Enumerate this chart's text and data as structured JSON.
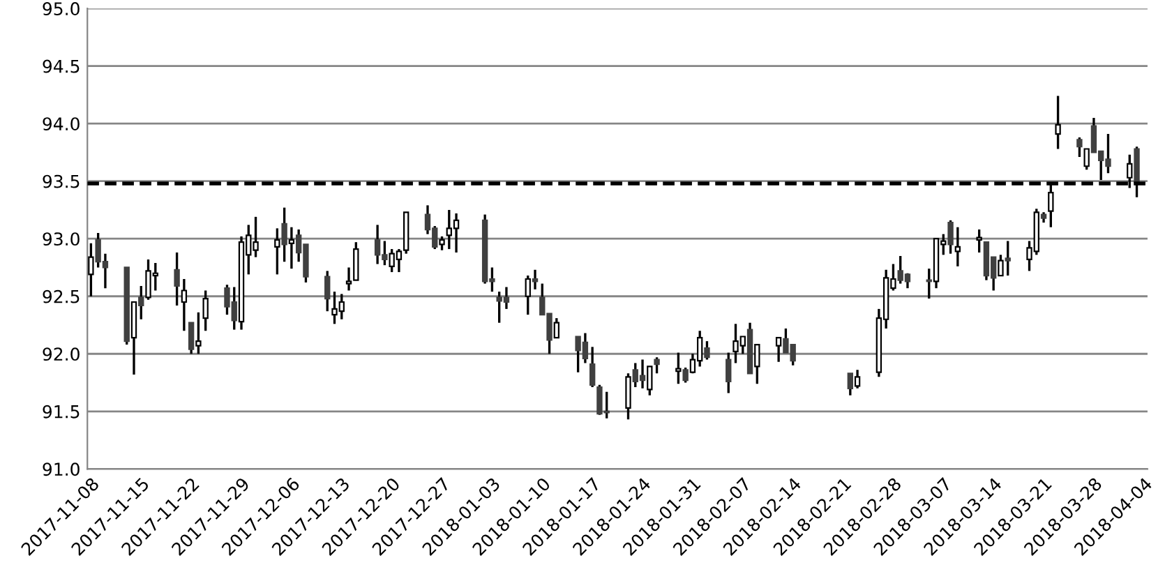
{
  "chart_data": {
    "type": "candlestick",
    "colors": [
      "#ffffff",
      "#404040",
      "#404040",
      "#404040",
      "#ffffff",
      "#404040",
      "#ffffff",
      "#ffffff",
      "#404040",
      "#ffffff",
      "#404040",
      "#ffffff",
      "#ffffff",
      "#404040",
      "#404040",
      "#ffffff",
      "#ffffff",
      "#ffffff",
      "#ffffff",
      "#404040",
      "#ffffff",
      "#404040",
      "#404040",
      "#404040",
      "#ffffff",
      "#ffffff",
      "#ffffff",
      "#ffffff",
      "#404040",
      "#404040",
      "#ffffff",
      "#ffffff",
      "#ffffff",
      "#404040",
      "#404040",
      "#ffffff",
      "#ffffff",
      "#ffffff",
      "#404040",
      "#404040",
      "#404040",
      "#404040",
      "#ffffff",
      "#404040",
      "#404040",
      "#404040",
      "#ffffff",
      "#404040",
      "#404040",
      "#404040",
      "#404040",
      "#404040",
      "#ffffff",
      "#404040",
      "#404040",
      "#ffffff",
      "#404040",
      "#ffffff",
      "#404040",
      "#ffffff",
      "#ffffff",
      "#404040",
      "#404040",
      "#ffffff",
      "#ffffff",
      "#404040",
      "#ffffff",
      "#ffffff",
      "#404040",
      "#404040",
      "#404040",
      "#ffffff",
      "#ffffff",
      "#ffffff",
      "#ffffff",
      "#404040",
      "#404040",
      "#404040",
      "#ffffff",
      "#ffffff",
      "#404040",
      "#ffffff",
      "#ffffff",
      "#404040",
      "#404040",
      "#ffffff",
      "#404040",
      "#ffffff",
      "#ffffff",
      "#404040",
      "#ffffff",
      "#ffffff",
      "#404040",
      "#ffffff",
      "#404040",
      "#404040",
      "#404040",
      "#ffffff",
      "#404040"
    ],
    "x": [
      "2017-11-08",
      "2017-11-09",
      "2017-11-10",
      "2017-11-13",
      "2017-11-14",
      "2017-11-15",
      "2017-11-16",
      "2017-11-17",
      "2017-11-20",
      "2017-11-21",
      "2017-11-22",
      "2017-11-23",
      "2017-11-24",
      "2017-11-27",
      "2017-11-28",
      "2017-11-29",
      "2017-11-30",
      "2017-12-01",
      "2017-12-04",
      "2017-12-05",
      "2017-12-06",
      "2017-12-07",
      "2017-12-08",
      "2017-12-11",
      "2017-12-12",
      "2017-12-13",
      "2017-12-14",
      "2017-12-15",
      "2017-12-18",
      "2017-12-19",
      "2017-12-20",
      "2017-12-21",
      "2017-12-22",
      "2017-12-25",
      "2017-12-26",
      "2017-12-27",
      "2017-12-28",
      "2017-12-29",
      "2018-01-02",
      "2018-01-03",
      "2018-01-04",
      "2018-01-05",
      "2018-01-08",
      "2018-01-09",
      "2018-01-10",
      "2018-01-11",
      "2018-01-12",
      "2018-01-15",
      "2018-01-16",
      "2018-01-17",
      "2018-01-18",
      "2018-01-19",
      "2018-01-22",
      "2018-01-23",
      "2018-01-24",
      "2018-01-25",
      "2018-01-26",
      "2018-01-29",
      "2018-01-30",
      "2018-01-31",
      "2018-02-01",
      "2018-02-02",
      "2018-02-05",
      "2018-02-06",
      "2018-02-07",
      "2018-02-08",
      "2018-02-09",
      "2018-02-12",
      "2018-02-13",
      "2018-02-14",
      "2018-02-22",
      "2018-02-23",
      "2018-02-26",
      "2018-02-27",
      "2018-02-28",
      "2018-03-01",
      "2018-03-02",
      "2018-03-05",
      "2018-03-06",
      "2018-03-07",
      "2018-03-08",
      "2018-03-09",
      "2018-03-12",
      "2018-03-13",
      "2018-03-14",
      "2018-03-15",
      "2018-03-16",
      "2018-03-19",
      "2018-03-20",
      "2018-03-21",
      "2018-03-22",
      "2018-03-23",
      "2018-03-26",
      "2018-03-27",
      "2018-03-28",
      "2018-03-29",
      "2018-03-30",
      "2018-04-02",
      "2018-04-03"
    ],
    "ohlc": [
      [
        92.69,
        92.96,
        92.5,
        92.84
      ],
      [
        92.99,
        93.05,
        92.75,
        92.8
      ],
      [
        92.8,
        92.87,
        92.57,
        92.75
      ],
      [
        92.75,
        92.75,
        92.08,
        92.11
      ],
      [
        92.14,
        92.45,
        91.82,
        92.45
      ],
      [
        92.49,
        92.59,
        92.3,
        92.42
      ],
      [
        92.49,
        92.82,
        92.47,
        92.72
      ],
      [
        92.68,
        92.79,
        92.55,
        92.7
      ],
      [
        92.73,
        92.88,
        92.42,
        92.59
      ],
      [
        92.45,
        92.65,
        92.2,
        92.55
      ],
      [
        92.27,
        92.27,
        92.0,
        92.04
      ],
      [
        92.07,
        92.36,
        92.0,
        92.11
      ],
      [
        92.31,
        92.55,
        92.2,
        92.48
      ],
      [
        92.57,
        92.6,
        92.34,
        92.41
      ],
      [
        92.45,
        92.58,
        92.21,
        92.29
      ],
      [
        92.28,
        93.02,
        92.21,
        92.97
      ],
      [
        92.86,
        93.12,
        92.69,
        93.03
      ],
      [
        92.9,
        93.19,
        92.84,
        92.97
      ],
      [
        92.93,
        93.09,
        92.69,
        92.99
      ],
      [
        93.13,
        93.27,
        92.8,
        92.95
      ],
      [
        92.96,
        93.1,
        92.74,
        92.99
      ],
      [
        93.03,
        93.08,
        92.8,
        92.88
      ],
      [
        92.95,
        92.95,
        92.62,
        92.67
      ],
      [
        92.67,
        92.72,
        92.37,
        92.48
      ],
      [
        92.34,
        92.54,
        92.26,
        92.39
      ],
      [
        92.37,
        92.52,
        92.3,
        92.45
      ],
      [
        92.61,
        92.75,
        92.55,
        92.63
      ],
      [
        92.64,
        92.97,
        92.64,
        92.91
      ],
      [
        92.99,
        93.12,
        92.78,
        92.86
      ],
      [
        92.86,
        92.98,
        92.77,
        92.82
      ],
      [
        92.76,
        92.91,
        92.71,
        92.87
      ],
      [
        92.82,
        92.91,
        92.71,
        92.89
      ],
      [
        92.9,
        93.23,
        92.87,
        93.23
      ],
      [
        93.21,
        93.29,
        93.04,
        93.08
      ],
      [
        93.09,
        93.11,
        92.91,
        92.93
      ],
      [
        92.95,
        93.02,
        92.9,
        92.99
      ],
      [
        93.03,
        93.25,
        92.91,
        93.09
      ],
      [
        93.09,
        93.22,
        92.88,
        93.16
      ],
      [
        93.16,
        93.21,
        92.61,
        92.63
      ],
      [
        92.65,
        92.75,
        92.54,
        92.63
      ],
      [
        92.49,
        92.54,
        92.27,
        92.46
      ],
      [
        92.49,
        92.58,
        92.39,
        92.45
      ],
      [
        92.5,
        92.68,
        92.34,
        92.65
      ],
      [
        92.65,
        92.73,
        92.56,
        92.63
      ],
      [
        92.49,
        92.61,
        92.34,
        92.34
      ],
      [
        92.35,
        92.35,
        92.0,
        92.12
      ],
      [
        92.14,
        92.31,
        92.14,
        92.27
      ],
      [
        92.15,
        92.15,
        91.84,
        92.03
      ],
      [
        92.1,
        92.18,
        91.92,
        91.96
      ],
      [
        91.91,
        92.06,
        91.71,
        91.73
      ],
      [
        91.71,
        91.73,
        91.47,
        91.48
      ],
      [
        91.5,
        91.67,
        91.44,
        91.49
      ],
      [
        91.53,
        91.83,
        91.43,
        91.8
      ],
      [
        91.86,
        91.92,
        91.71,
        91.76
      ],
      [
        91.81,
        91.95,
        91.7,
        91.77
      ],
      [
        91.69,
        91.89,
        91.64,
        91.89
      ],
      [
        91.95,
        91.97,
        91.83,
        91.91
      ],
      [
        91.85,
        92.01,
        91.74,
        91.87
      ],
      [
        91.86,
        91.88,
        91.75,
        91.77
      ],
      [
        91.84,
        92.0,
        91.83,
        91.95
      ],
      [
        91.94,
        92.2,
        91.89,
        92.14
      ],
      [
        92.05,
        92.11,
        91.95,
        91.97
      ],
      [
        91.95,
        92.01,
        91.66,
        91.76
      ],
      [
        92.02,
        92.26,
        91.92,
        92.11
      ],
      [
        92.07,
        92.15,
        92.0,
        92.15
      ],
      [
        92.21,
        92.27,
        91.83,
        91.83
      ],
      [
        91.89,
        92.08,
        91.74,
        92.08
      ],
      [
        92.07,
        92.14,
        91.93,
        92.14
      ],
      [
        92.13,
        92.22,
        92.01,
        92.01
      ],
      [
        92.08,
        92.08,
        91.9,
        91.94
      ],
      [
        91.83,
        91.83,
        91.64,
        91.7
      ],
      [
        91.72,
        91.86,
        91.7,
        91.8
      ],
      [
        91.84,
        92.39,
        91.8,
        92.31
      ],
      [
        92.3,
        92.73,
        92.22,
        92.66
      ],
      [
        92.57,
        92.78,
        92.55,
        92.65
      ],
      [
        92.72,
        92.85,
        92.61,
        92.64
      ],
      [
        92.69,
        92.7,
        92.57,
        92.63
      ],
      [
        92.64,
        92.74,
        92.48,
        92.63
      ],
      [
        92.63,
        93.0,
        92.57,
        93.0
      ],
      [
        92.95,
        93.04,
        92.86,
        92.98
      ],
      [
        93.14,
        93.16,
        92.87,
        92.95
      ],
      [
        92.89,
        93.1,
        92.76,
        92.93
      ],
      [
        92.99,
        93.08,
        92.88,
        93.01
      ],
      [
        92.97,
        92.97,
        92.64,
        92.68
      ],
      [
        92.84,
        92.84,
        92.55,
        92.66
      ],
      [
        92.68,
        92.86,
        92.68,
        92.81
      ],
      [
        92.83,
        92.98,
        92.68,
        92.81
      ],
      [
        92.82,
        92.98,
        92.72,
        92.92
      ],
      [
        92.89,
        93.26,
        92.86,
        93.23
      ],
      [
        93.21,
        93.23,
        93.14,
        93.18
      ],
      [
        93.24,
        93.48,
        93.1,
        93.4
      ],
      [
        93.91,
        94.24,
        93.78,
        93.99
      ],
      [
        93.86,
        93.88,
        93.71,
        93.8
      ],
      [
        93.63,
        93.78,
        93.6,
        93.78
      ],
      [
        93.98,
        94.05,
        93.75,
        93.75
      ],
      [
        93.76,
        93.76,
        93.51,
        93.68
      ],
      [
        93.69,
        93.91,
        93.57,
        93.63
      ],
      [
        93.53,
        93.73,
        93.44,
        93.65
      ],
      [
        93.78,
        93.8,
        93.36,
        93.49
      ]
    ],
    "xlim": [
      "2017-11-07T12:00",
      "2018-04-04T12:00"
    ],
    "xticks": [
      "2017-11-08",
      "2017-11-15",
      "2017-11-22",
      "2017-11-29",
      "2017-12-06",
      "2017-12-13",
      "2017-12-20",
      "2017-12-27",
      "2018-01-03",
      "2018-01-10",
      "2018-01-17",
      "2018-01-24",
      "2018-01-31",
      "2018-02-07",
      "2018-02-14",
      "2018-02-21",
      "2018-02-28",
      "2018-03-07",
      "2018-03-14",
      "2018-03-21",
      "2018-03-28",
      "2018-04-04"
    ],
    "ylim": [
      91.0,
      95.0
    ],
    "yticks": [
      {
        "value": 91.0,
        "label": "91.0"
      },
      {
        "value": 91.5,
        "label": "91.5"
      },
      {
        "value": 92.0,
        "label": "92.0"
      },
      {
        "value": 92.5,
        "label": "92.5"
      },
      {
        "value": 93.0,
        "label": "93.0"
      },
      {
        "value": 93.5,
        "label": "93.5"
      },
      {
        "value": 94.0,
        "label": "94.0"
      },
      {
        "value": 94.5,
        "label": "94.5"
      },
      {
        "value": 95.0,
        "label": "95.0"
      }
    ],
    "grid": "y",
    "ref_lines": [
      {
        "axis": "y",
        "value": 93.48,
        "color": "#000000",
        "line_style": "dashed"
      }
    ]
  }
}
